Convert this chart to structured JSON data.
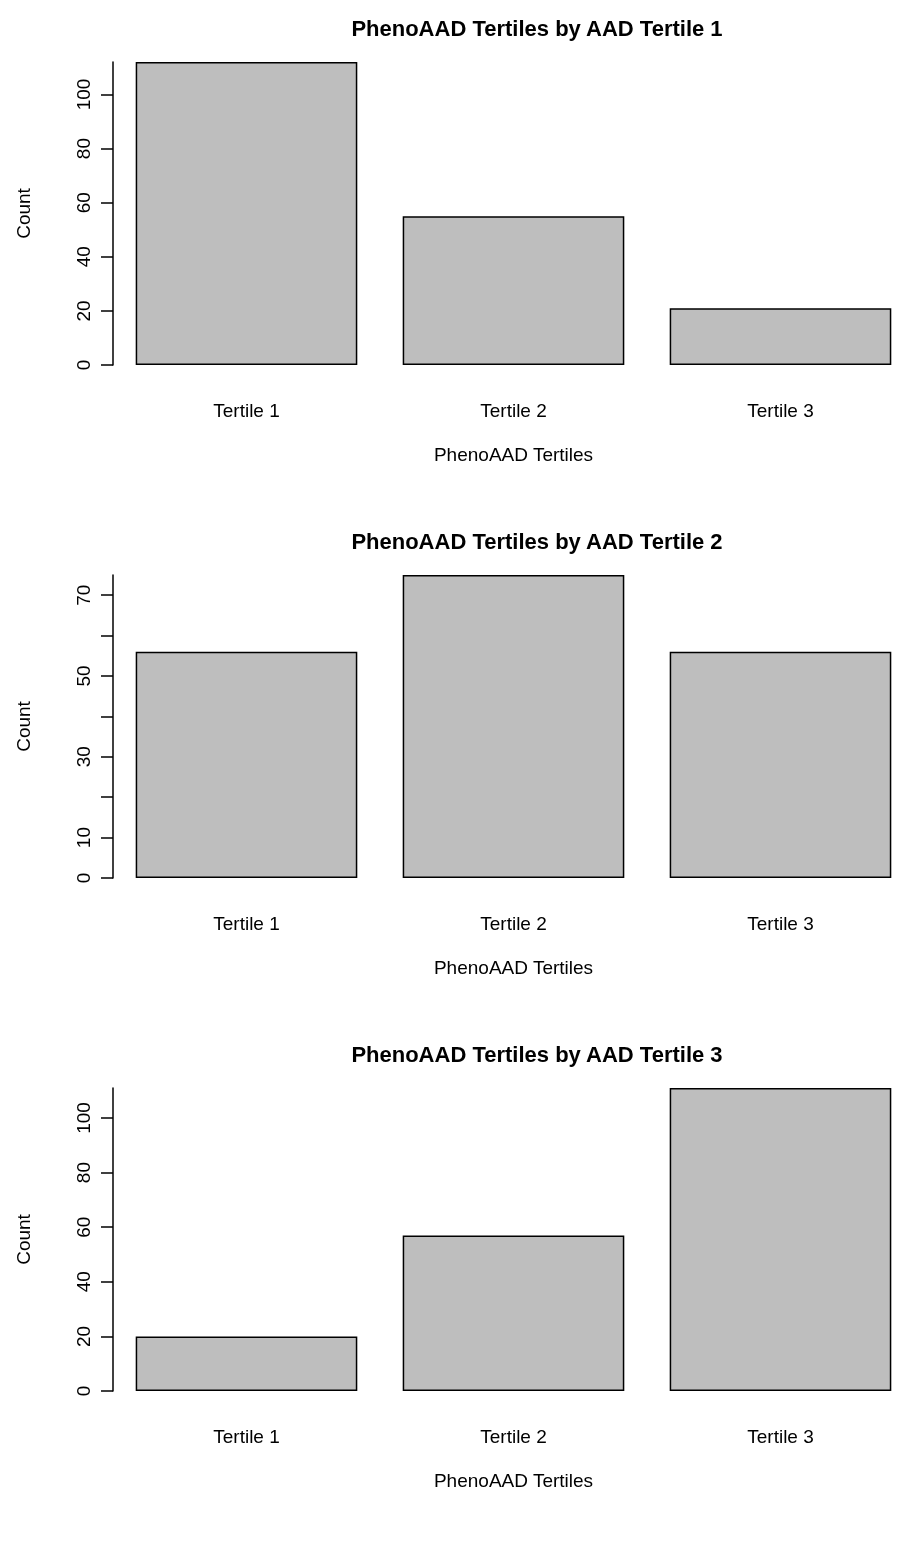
{
  "chart_data": [
    {
      "type": "bar",
      "title": "PhenoAAD Tertiles by AAD Tertile 1",
      "xlabel": "PhenoAAD Tertiles",
      "ylabel": "Count",
      "categories": [
        "Tertile 1",
        "Tertile 2",
        "Tertile 3"
      ],
      "values": [
        112,
        55,
        21
      ],
      "color": "#bebebe",
      "ylim": [
        0,
        112
      ],
      "yticks": [
        0,
        20,
        40,
        60,
        80,
        100
      ],
      "grid": false
    },
    {
      "type": "bar",
      "title": "PhenoAAD Tertiles by AAD Tertile 2",
      "xlabel": "PhenoAAD Tertiles",
      "ylabel": "Count",
      "categories": [
        "Tertile 1",
        "Tertile 2",
        "Tertile 3"
      ],
      "values": [
        56,
        75,
        56
      ],
      "color": "#bebebe",
      "ylim": [
        0,
        75
      ],
      "yticks": [
        0,
        10,
        {
          "value": 20,
          "label": null
        },
        30,
        {
          "value": 40,
          "label": null
        },
        50,
        {
          "value": 60,
          "label": null
        },
        70
      ],
      "grid": false
    },
    {
      "type": "bar",
      "title": "PhenoAAD Tertiles by AAD Tertile 3",
      "xlabel": "PhenoAAD Tertiles",
      "ylabel": "Count",
      "categories": [
        "Tertile 1",
        "Tertile 2",
        "Tertile 3"
      ],
      "values": [
        20,
        57,
        111
      ],
      "color": "#bebebe",
      "ylim": [
        0,
        111
      ],
      "yticks": [
        0,
        20,
        40,
        60,
        80,
        100
      ],
      "grid": false
    }
  ]
}
